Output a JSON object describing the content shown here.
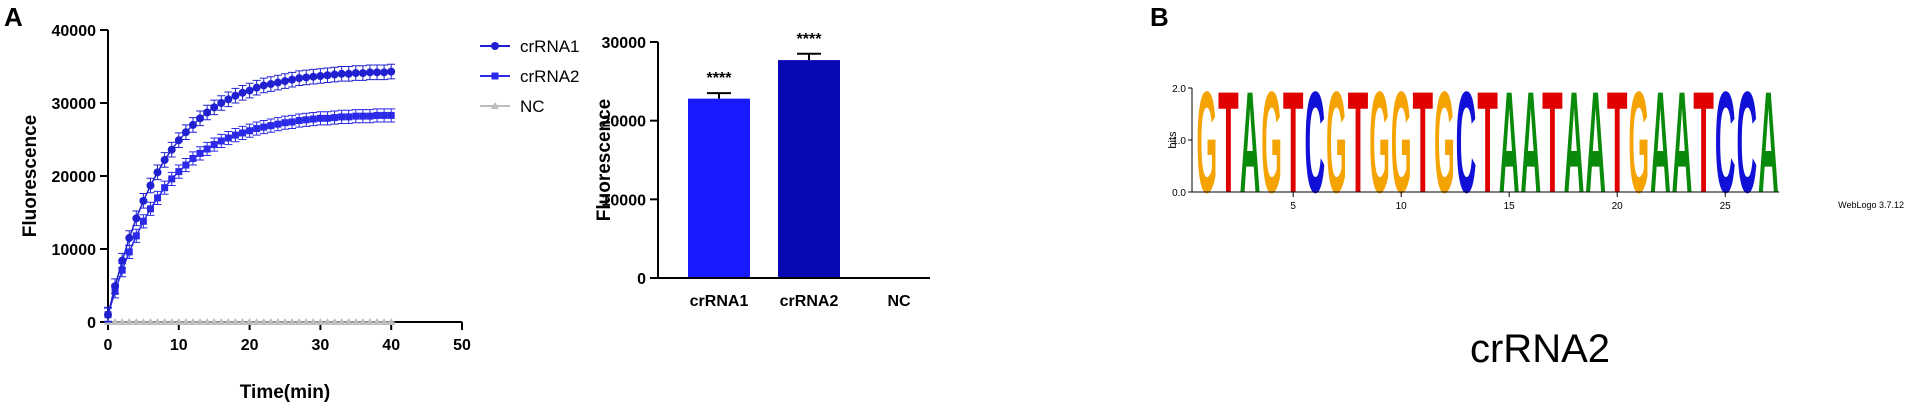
{
  "chart_data": [
    {
      "type": "line",
      "panel_label": "A",
      "x_label": "Time(min)",
      "y_label": "Fluorescence",
      "xlim": [
        0,
        50
      ],
      "xticks": [
        0,
        10,
        20,
        30,
        40,
        50
      ],
      "ylim": [
        0,
        40000
      ],
      "yticks": [
        0,
        10000,
        20000,
        30000,
        40000
      ],
      "legend": "right",
      "x": [
        0,
        1,
        2,
        3,
        4,
        5,
        6,
        7,
        8,
        9,
        10,
        11,
        12,
        13,
        14,
        15,
        16,
        17,
        18,
        19,
        20,
        21,
        22,
        23,
        24,
        25,
        26,
        27,
        28,
        29,
        30,
        31,
        32,
        33,
        34,
        35,
        36,
        37,
        38,
        39,
        40
      ],
      "series": [
        {
          "name": "crRNA1",
          "color": "#2020d0",
          "marker": "circle",
          "error": 1000,
          "values": [
            1000,
            4900,
            8400,
            11500,
            14200,
            16600,
            18700,
            20500,
            22200,
            23600,
            24900,
            26000,
            27000,
            27900,
            28700,
            29400,
            30000,
            30500,
            31000,
            31400,
            31700,
            32100,
            32400,
            32600,
            32800,
            33000,
            33200,
            33400,
            33500,
            33600,
            33700,
            33800,
            33900,
            34000,
            34000,
            34100,
            34100,
            34200,
            34200,
            34200,
            34300
          ]
        },
        {
          "name": "crRNA2",
          "color": "#2a2ae8",
          "marker": "square",
          "error": 900,
          "values": [
            1000,
            4200,
            7100,
            9600,
            11800,
            13800,
            15500,
            17000,
            18400,
            19600,
            20600,
            21500,
            22400,
            23100,
            23700,
            24300,
            24800,
            25200,
            25600,
            25900,
            26200,
            26500,
            26700,
            26900,
            27100,
            27300,
            27400,
            27600,
            27700,
            27800,
            27900,
            27900,
            28000,
            28100,
            28100,
            28200,
            28200,
            28200,
            28300,
            28300,
            28300
          ]
        },
        {
          "name": "NC",
          "color": "#bdbdbd",
          "marker": "triangle",
          "error": 0,
          "values": [
            0,
            0,
            0,
            0,
            0,
            0,
            0,
            0,
            0,
            0,
            0,
            0,
            0,
            0,
            0,
            0,
            0,
            0,
            0,
            0,
            0,
            0,
            0,
            0,
            0,
            0,
            0,
            0,
            0,
            0,
            0,
            0,
            0,
            0,
            0,
            0,
            0,
            0,
            0,
            0,
            0
          ]
        }
      ]
    },
    {
      "type": "bar",
      "y_label": "Fluorescence",
      "categories": [
        "crRNA1",
        "crRNA2",
        "NC"
      ],
      "values": [
        22800,
        27700,
        0
      ],
      "errors": [
        700,
        800,
        0
      ],
      "colors": [
        "#1a1aff",
        "#0808b4",
        "#0808b4"
      ],
      "annotations": [
        "****",
        "****",
        null
      ],
      "ylim": [
        0,
        30000
      ],
      "yticks": [
        0,
        10000,
        20000,
        30000
      ]
    },
    {
      "type": "logo",
      "panel_label": "B",
      "y_label": "bits",
      "credit": "WebLogo 3.7.12",
      "caption": "crRNA2",
      "ylim": [
        0,
        2
      ],
      "yticks": [
        {
          "value": 0,
          "label": "0.0"
        },
        {
          "value": 1,
          "label": "1.0"
        },
        {
          "value": 2,
          "label": "2.0"
        }
      ],
      "xticks": [
        5,
        10,
        15,
        20,
        25
      ],
      "letter_colors": {
        "A": "#0a8a0a",
        "C": "#1010d8",
        "G": "#f5a300",
        "T": "#e00000"
      },
      "sequence": [
        "G",
        "T",
        "A",
        "G",
        "T",
        "C",
        "G",
        "T",
        "G",
        "G",
        "T",
        "G",
        "C",
        "T",
        "A",
        "A",
        "T",
        "A",
        "A",
        "T",
        "G",
        "A",
        "A",
        "T",
        "C",
        "C",
        "A"
      ],
      "heights": [
        2,
        2,
        2,
        2,
        2,
        2,
        2,
        2,
        2,
        2,
        2,
        2,
        2,
        2,
        2,
        2,
        2,
        2,
        2,
        2,
        2,
        2,
        2,
        2,
        2,
        2,
        2
      ]
    }
  ]
}
